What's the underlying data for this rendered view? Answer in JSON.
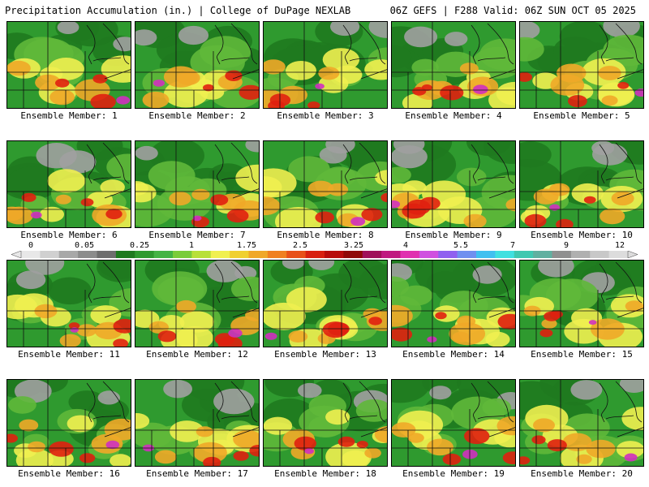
{
  "header": {
    "title_left": "Precipitation Accumulation (in.) | College of DuPage NEXLAB",
    "title_right": "06Z GEFS | F288 Valid: 06Z SUN OCT 05 2025"
  },
  "members": [
    {
      "label": "Ensemble Member: 1"
    },
    {
      "label": "Ensemble Member: 2"
    },
    {
      "label": "Ensemble Member: 3"
    },
    {
      "label": "Ensemble Member: 4"
    },
    {
      "label": "Ensemble Member: 5"
    },
    {
      "label": "Ensemble Member: 6"
    },
    {
      "label": "Ensemble Member: 7"
    },
    {
      "label": "Ensemble Member: 8"
    },
    {
      "label": "Ensemble Member: 9"
    },
    {
      "label": "Ensemble Member: 10"
    },
    {
      "label": "Ensemble Member: 11"
    },
    {
      "label": "Ensemble Member: 12"
    },
    {
      "label": "Ensemble Member: 13"
    },
    {
      "label": "Ensemble Member: 14"
    },
    {
      "label": "Ensemble Member: 15"
    },
    {
      "label": "Ensemble Member: 16"
    },
    {
      "label": "Ensemble Member: 17"
    },
    {
      "label": "Ensemble Member: 18"
    },
    {
      "label": "Ensemble Member: 19"
    },
    {
      "label": "Ensemble Member: 20"
    }
  ],
  "colorbar": {
    "ticks": [
      "0",
      "0.05",
      "0.25",
      "1",
      "1.75",
      "2.5",
      "3.25",
      "4",
      "5.5",
      "7",
      "9",
      "12"
    ],
    "colors": [
      "#e8e8e8",
      "#d0d0d0",
      "#a8a8a8",
      "#8c8c8c",
      "#6e6e6e",
      "#1e7a1e",
      "#2e9a2e",
      "#44b444",
      "#7acc3a",
      "#b8e038",
      "#f0f050",
      "#f0d030",
      "#f0a828",
      "#f08020",
      "#e85018",
      "#d82010",
      "#b80c0c",
      "#900808",
      "#a0105a",
      "#c01880",
      "#e030b0",
      "#d050e0",
      "#9060f0",
      "#7090f0",
      "#40c0f0",
      "#40e0e0",
      "#40c8b0",
      "#60b0a0",
      "#909090",
      "#b0b0b0",
      "#c8c8c8",
      "#dcdcdc"
    ]
  },
  "theme": {
    "green_dark": "#1f7a1f",
    "green_mid": "#2f9a2f",
    "green_light": "#5fb83a",
    "yellow": "#f0f050",
    "orange": "#f0a828",
    "red": "#e02010",
    "magenta": "#d030c0",
    "gray": "#a0a0a0"
  }
}
